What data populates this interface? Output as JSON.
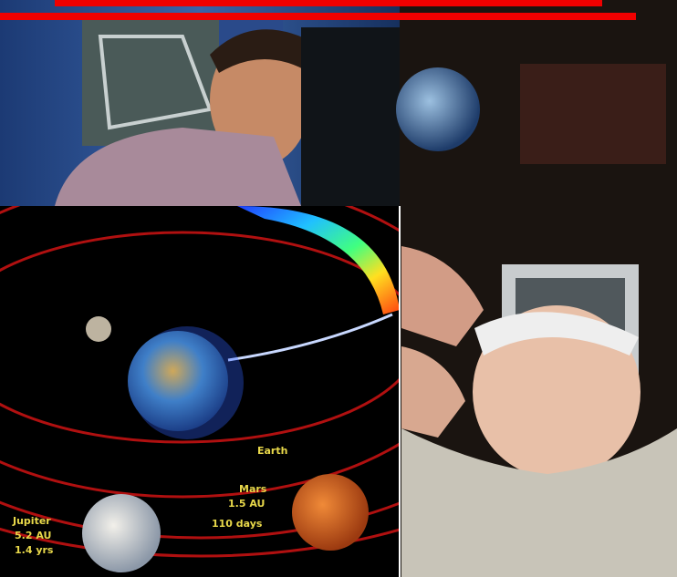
{
  "diagram": {
    "labels": {
      "earth": "Earth",
      "mars": [
        "Mars",
        "1.5 AU",
        "110 days"
      ],
      "jupiter": [
        "Jupiter",
        "5.2 AU",
        "1.4 yrs"
      ]
    }
  }
}
